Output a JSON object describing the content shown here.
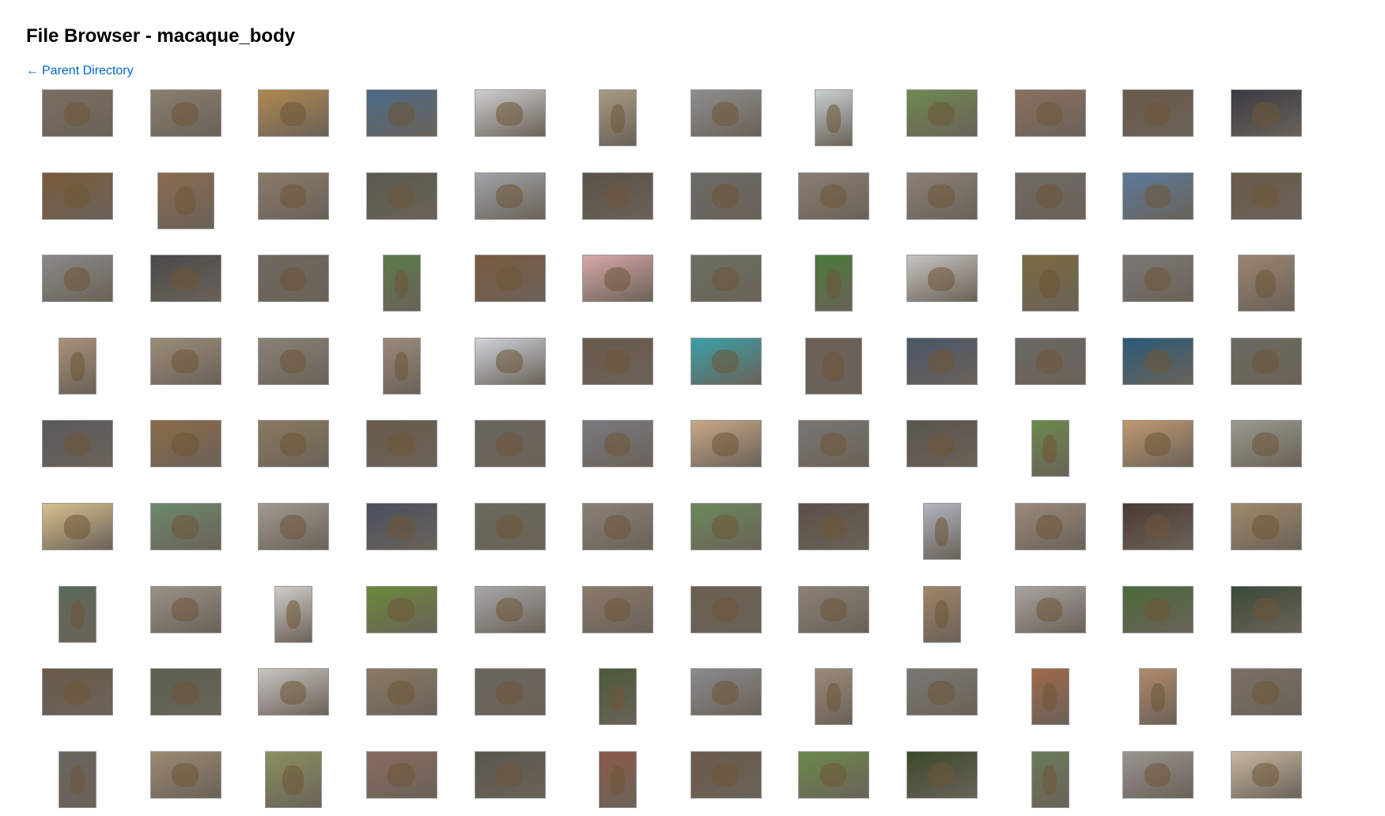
{
  "page": {
    "title": "File Browser - macaque_body",
    "parent_link": {
      "arrow": "←",
      "label": "Parent Directory"
    }
  },
  "thumbnails": [
    {
      "shape": "landscape",
      "bg": "#7a6e60"
    },
    {
      "shape": "landscape",
      "bg": "#8a7f6e"
    },
    {
      "shape": "landscape",
      "bg": "#b08850"
    },
    {
      "shape": "landscape",
      "bg": "#4a6a8a"
    },
    {
      "shape": "landscape",
      "bg": "#cfcfcf"
    },
    {
      "shape": "portrait",
      "bg": "#a89a84"
    },
    {
      "shape": "landscape",
      "bg": "#8e8e8e"
    },
    {
      "shape": "portrait",
      "bg": "#c8d0d0"
    },
    {
      "shape": "landscape",
      "bg": "#6e8a50"
    },
    {
      "shape": "landscape",
      "bg": "#8a7060"
    },
    {
      "shape": "landscape",
      "bg": "#6a5a4a"
    },
    {
      "shape": "landscape",
      "bg": "#3a3a44"
    },
    {
      "shape": "landscape",
      "bg": "#7a5a3a"
    },
    {
      "shape": "square",
      "bg": "#8a6a50"
    },
    {
      "shape": "landscape",
      "bg": "#8a7a6a"
    },
    {
      "shape": "landscape",
      "bg": "#5a5a50"
    },
    {
      "shape": "landscape",
      "bg": "#a0a4a8"
    },
    {
      "shape": "landscape",
      "bg": "#5a524a"
    },
    {
      "shape": "landscape",
      "bg": "#6a6a66"
    },
    {
      "shape": "landscape",
      "bg": "#8a7e74"
    },
    {
      "shape": "landscape",
      "bg": "#8a8078"
    },
    {
      "shape": "landscape",
      "bg": "#6e6a64"
    },
    {
      "shape": "landscape",
      "bg": "#5a7a9a"
    },
    {
      "shape": "landscape",
      "bg": "#6a5a48"
    },
    {
      "shape": "landscape",
      "bg": "#8a8a88"
    },
    {
      "shape": "landscape",
      "bg": "#4a4a4a"
    },
    {
      "shape": "landscape",
      "bg": "#6e6860"
    },
    {
      "shape": "portrait",
      "bg": "#5a7a4a"
    },
    {
      "shape": "landscape",
      "bg": "#7a5a40"
    },
    {
      "shape": "landscape",
      "bg": "#d8a8a8"
    },
    {
      "shape": "landscape",
      "bg": "#6a7060"
    },
    {
      "shape": "portrait",
      "bg": "#4a7a3a"
    },
    {
      "shape": "landscape",
      "bg": "#c8c4c0"
    },
    {
      "shape": "square",
      "bg": "#7a6a40"
    },
    {
      "shape": "landscape",
      "bg": "#7a7874"
    },
    {
      "shape": "square",
      "bg": "#9a8470"
    },
    {
      "shape": "portrait",
      "bg": "#a89078"
    },
    {
      "shape": "landscape",
      "bg": "#9a8c78"
    },
    {
      "shape": "landscape",
      "bg": "#8a8276"
    },
    {
      "shape": "portrait",
      "bg": "#9a8a7a"
    },
    {
      "shape": "landscape",
      "bg": "#d0d4dc"
    },
    {
      "shape": "landscape",
      "bg": "#6a5a4a"
    },
    {
      "shape": "landscape",
      "bg": "#3aa0a8"
    },
    {
      "shape": "square",
      "bg": "#6a6058"
    },
    {
      "shape": "landscape",
      "bg": "#4a5668"
    },
    {
      "shape": "landscape",
      "bg": "#6a6864"
    },
    {
      "shape": "landscape",
      "bg": "#2a5a7a"
    },
    {
      "shape": "landscape",
      "bg": "#6a6a60"
    },
    {
      "shape": "landscape",
      "bg": "#5a5a5e"
    },
    {
      "shape": "landscape",
      "bg": "#8a6a48"
    },
    {
      "shape": "landscape",
      "bg": "#8a7a60"
    },
    {
      "shape": "landscape",
      "bg": "#6a5a4a"
    },
    {
      "shape": "landscape",
      "bg": "#6a6660"
    },
    {
      "shape": "landscape",
      "bg": "#7a7a80"
    },
    {
      "shape": "landscape",
      "bg": "#c8a888"
    },
    {
      "shape": "landscape",
      "bg": "#7a7674"
    },
    {
      "shape": "landscape",
      "bg": "#5a5450"
    },
    {
      "shape": "portrait",
      "bg": "#6a8a4a"
    },
    {
      "shape": "landscape",
      "bg": "#c09870"
    },
    {
      "shape": "landscape",
      "bg": "#9a9a90"
    },
    {
      "shape": "landscape",
      "bg": "#d8c090"
    },
    {
      "shape": "landscape",
      "bg": "#6a8a6a"
    },
    {
      "shape": "landscape",
      "bg": "#a09a90"
    },
    {
      "shape": "landscape",
      "bg": "#4a5060"
    },
    {
      "shape": "landscape",
      "bg": "#6a6a5a"
    },
    {
      "shape": "landscape",
      "bg": "#8a8078"
    },
    {
      "shape": "landscape",
      "bg": "#6a8a5a"
    },
    {
      "shape": "landscape",
      "bg": "#5a504a"
    },
    {
      "shape": "portrait",
      "bg": "#b0b4c0"
    },
    {
      "shape": "landscape",
      "bg": "#9a8a7a"
    },
    {
      "shape": "landscape",
      "bg": "#4a3a34"
    },
    {
      "shape": "landscape",
      "bg": "#a08a6a"
    },
    {
      "shape": "portrait",
      "bg": "#5a6a5a"
    },
    {
      "shape": "landscape",
      "bg": "#9a9288"
    },
    {
      "shape": "portrait",
      "bg": "#d0ccc8"
    },
    {
      "shape": "landscape",
      "bg": "#6a8a3a"
    },
    {
      "shape": "landscape",
      "bg": "#a8a8a8"
    },
    {
      "shape": "landscape",
      "bg": "#8a7a6a"
    },
    {
      "shape": "landscape",
      "bg": "#6a6050"
    },
    {
      "shape": "landscape",
      "bg": "#8a8078"
    },
    {
      "shape": "portrait",
      "bg": "#a08468"
    },
    {
      "shape": "landscape",
      "bg": "#a8a4a0"
    },
    {
      "shape": "landscape",
      "bg": "#4a6a3a"
    },
    {
      "shape": "landscape",
      "bg": "#3a4a3a"
    },
    {
      "shape": "landscape",
      "bg": "#6a5a4a"
    },
    {
      "shape": "landscape",
      "bg": "#5a6050"
    },
    {
      "shape": "landscape",
      "bg": "#c8c4c0"
    },
    {
      "shape": "landscape",
      "bg": "#8a7a64"
    },
    {
      "shape": "landscape",
      "bg": "#6a6660"
    },
    {
      "shape": "portrait",
      "bg": "#4a5a3a"
    },
    {
      "shape": "landscape",
      "bg": "#8a8a8c"
    },
    {
      "shape": "portrait",
      "bg": "#9a8a78"
    },
    {
      "shape": "landscape",
      "bg": "#7a7874"
    },
    {
      "shape": "portrait",
      "bg": "#a06848"
    },
    {
      "shape": "portrait",
      "bg": "#b08a6a"
    },
    {
      "shape": "landscape",
      "bg": "#7a7064"
    },
    {
      "shape": "portrait",
      "bg": "#6a6460"
    },
    {
      "shape": "landscape",
      "bg": "#9a8a70"
    },
    {
      "shape": "square",
      "bg": "#8a9060"
    },
    {
      "shape": "landscape",
      "bg": "#8a6a60"
    },
    {
      "shape": "landscape",
      "bg": "#5a5650"
    },
    {
      "shape": "portrait",
      "bg": "#8a5a4a"
    },
    {
      "shape": "landscape",
      "bg": "#6a5a4a"
    },
    {
      "shape": "landscape",
      "bg": "#6a8a4a"
    },
    {
      "shape": "landscape",
      "bg": "#3a4a2a"
    },
    {
      "shape": "portrait",
      "bg": "#6a7a5a"
    },
    {
      "shape": "landscape",
      "bg": "#9a9490"
    },
    {
      "shape": "landscape",
      "bg": "#c8b8a0"
    }
  ]
}
